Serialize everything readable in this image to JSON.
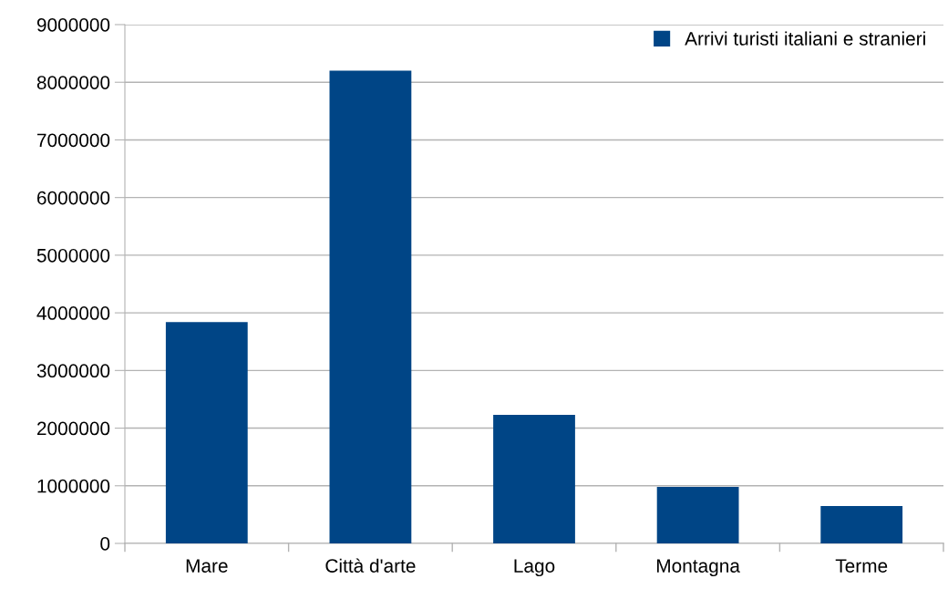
{
  "chart_data": {
    "type": "bar",
    "categories": [
      "Mare",
      "Città d'arte",
      "Lago",
      "Montagna",
      "Terme"
    ],
    "series": [
      {
        "name": "Arrivi turisti italiani e stranieri",
        "color": "#004586",
        "values": [
          3840000,
          8200000,
          2230000,
          980000,
          650000
        ]
      }
    ],
    "ylim": [
      0,
      9000000
    ],
    "yticks": [
      0,
      1000000,
      2000000,
      3000000,
      4000000,
      5000000,
      6000000,
      7000000,
      8000000,
      9000000
    ],
    "grid": "y",
    "legend": "top right"
  }
}
